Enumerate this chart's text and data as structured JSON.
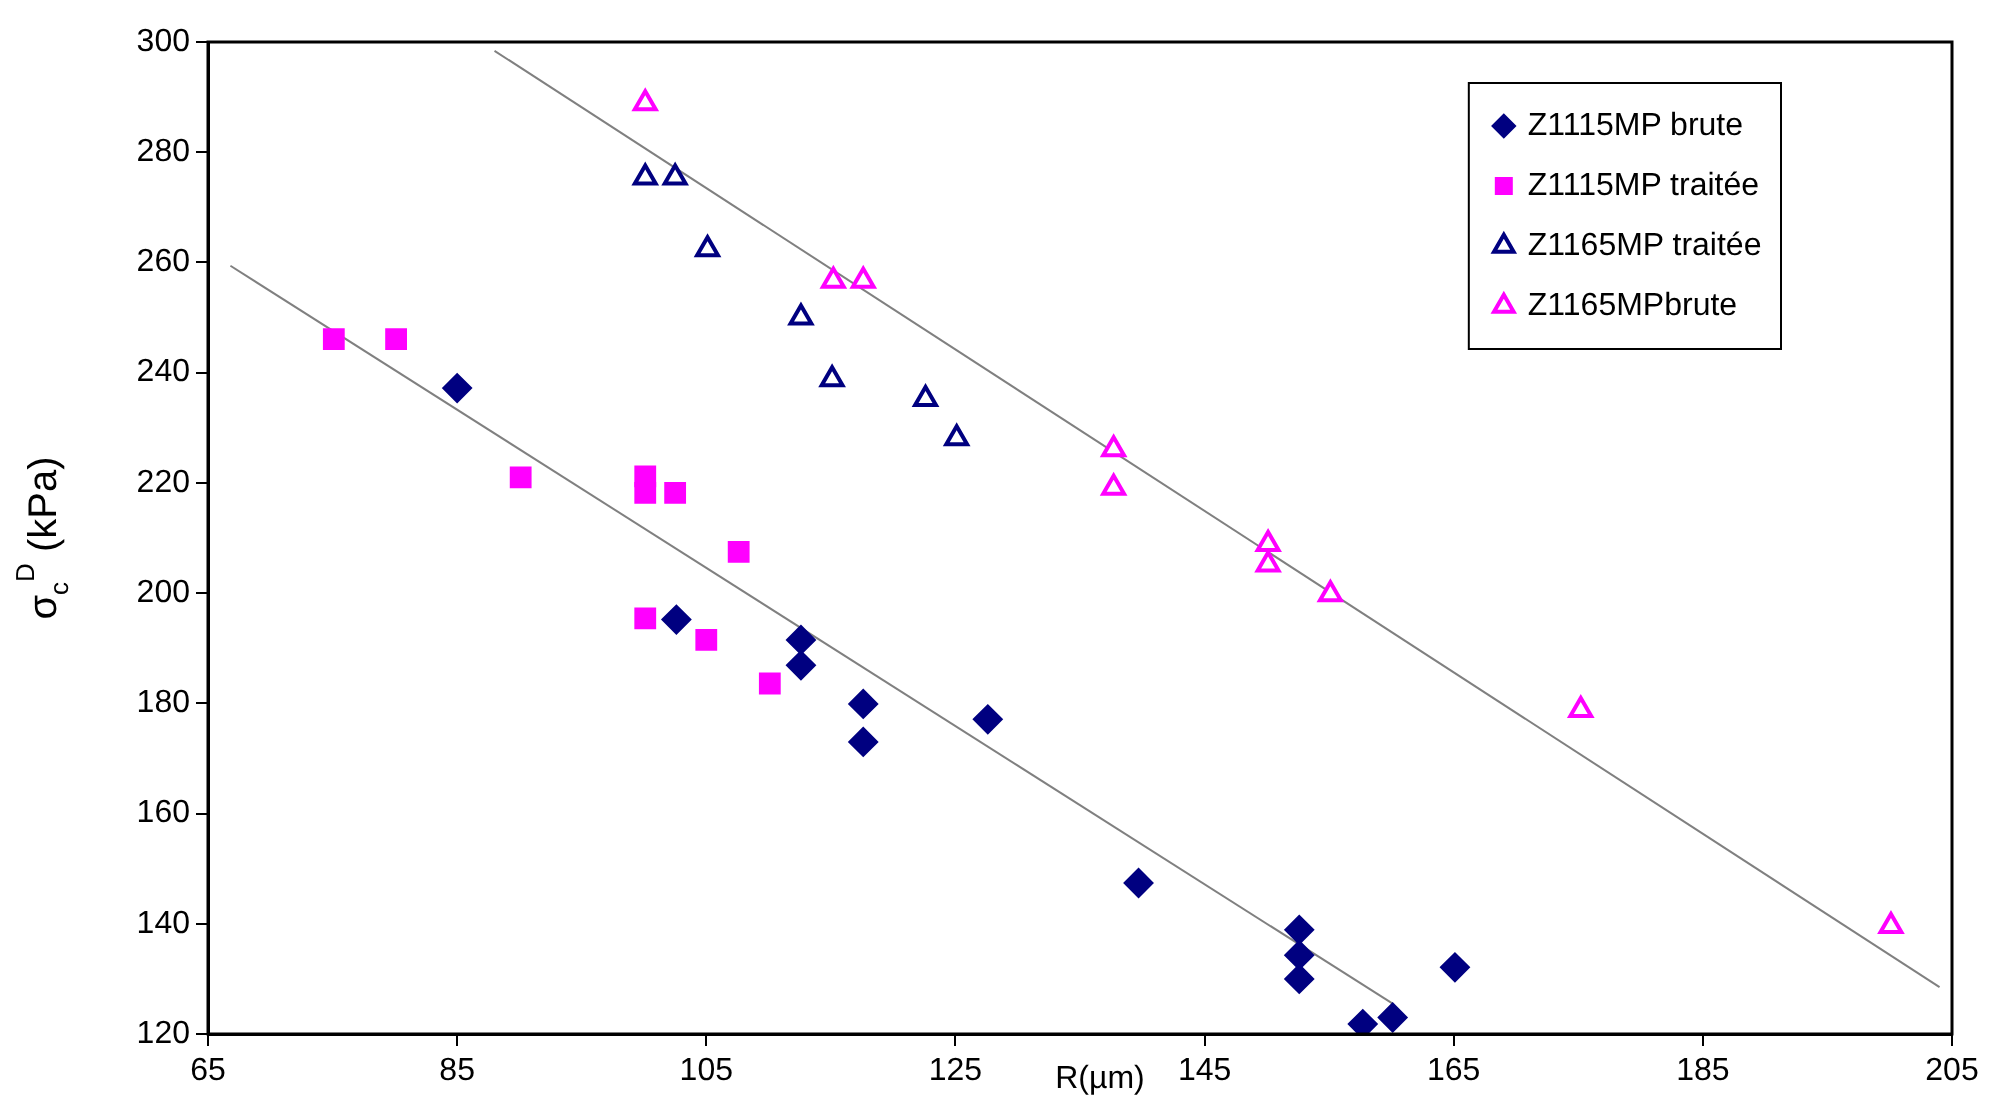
{
  "chart_data": {
    "type": "scatter",
    "xlabel": "R(µm)",
    "ylabel": "σ$_{c}$$^{D}$ (kPa)",
    "xlim": [
      65,
      205
    ],
    "xticks": [
      65,
      85,
      105,
      125,
      145,
      165,
      185,
      205
    ],
    "ylim": [
      120,
      300
    ],
    "yticks": [
      120,
      140,
      160,
      180,
      200,
      220,
      240,
      260,
      280,
      300
    ],
    "grid": false,
    "legend": "top right",
    "series": [
      {
        "name": "Z1115MP brute",
        "color": "#000080",
        "marker": "diamond",
        "x": [
          85,
          102.6,
          112.6,
          112.6,
          117.6,
          117.6,
          127.6,
          139.7,
          152.6,
          152.6,
          152.6,
          157.7,
          160.1,
          165.1
        ],
        "values": [
          237.2,
          195.2,
          191.5,
          186.9,
          179.9,
          173,
          177.1,
          147.4,
          138.9,
          134.3,
          130,
          121.8,
          123,
          132.1
        ]
      },
      {
        "name": "Z1115MP traitée",
        "color": "#ff00ff",
        "marker": "square",
        "x": [
          75.1,
          80.1,
          90.1,
          100.1,
          100.1,
          102.5,
          107.6,
          100.1,
          105,
          110.1
        ],
        "values": [
          246.1,
          246.1,
          221,
          221.2,
          218.2,
          218.2,
          207.5,
          195.4,
          191.5,
          183.6
        ]
      },
      {
        "name": "Z1165MP traitée",
        "color": "#000080",
        "marker": "triangle",
        "x": [
          100.1,
          102.5,
          105.1,
          112.6,
          115.1,
          122.6,
          125.1
        ],
        "values": [
          275.4,
          275.4,
          262.4,
          250,
          238.8,
          235.2,
          228.1
        ]
      },
      {
        "name": "Z1165MPbrute",
        "color": "#ff00ff",
        "marker": "triangle",
        "x": [
          100.1,
          115.2,
          117.6,
          137.7,
          137.7,
          150.1,
          150.1,
          155.1,
          175.2,
          200.1
        ],
        "values": [
          288.9,
          256.7,
          256.7,
          226.1,
          219.1,
          208.9,
          205.2,
          199.8,
          178.8,
          139.6
        ]
      },
      {
        "type": "line",
        "color": "#808080",
        "marker": "none",
        "x": [
          66.8,
          160.1
        ],
        "values": [
          259.4,
          125.5
        ]
      },
      {
        "type": "line",
        "color": "#808080",
        "marker": "none",
        "x": [
          88,
          204
        ],
        "values": [
          298.4,
          128.5
        ]
      }
    ]
  }
}
